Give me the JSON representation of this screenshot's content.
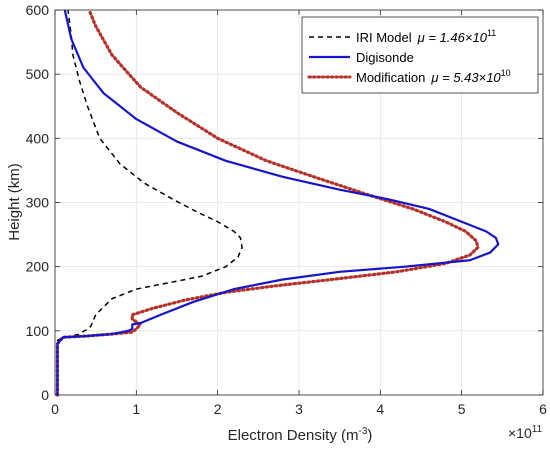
{
  "chart_data": {
    "type": "line",
    "xlabel": "Electron Density (m",
    "xlabel_exponent": "-3",
    "xlabel_suffix": ")",
    "ylabel": "Height (km)",
    "x_multiplier_base": "×10",
    "x_multiplier_exponent": "11",
    "xlim": [
      0,
      6
    ],
    "ylim": [
      0,
      600
    ],
    "xticks": [
      "0",
      "1",
      "2",
      "3",
      "4",
      "5",
      "6"
    ],
    "yticks": [
      "0",
      "100",
      "200",
      "300",
      "400",
      "500",
      "600"
    ],
    "grid": true,
    "legend_position": "top-right",
    "series": [
      {
        "name": "IRI Model",
        "legend_math": "μ = 1.46×10",
        "legend_exponent": "11",
        "color": "#000000",
        "style": "dashed",
        "x": [
          0.03,
          0.03,
          0.07,
          0.15,
          0.3,
          0.36,
          0.4,
          0.44,
          0.45,
          0.5,
          0.7,
          1.0,
          1.4,
          1.8,
          2.1,
          2.25,
          2.3,
          2.28,
          2.2,
          2.0,
          1.75,
          1.45,
          1.1,
          0.8,
          0.55,
          0.4,
          0.3,
          0.22,
          0.2,
          0.18,
          0.16
        ],
        "y": [
          0,
          85,
          88,
          90,
          95,
          100,
          102,
          107,
          110,
          125,
          150,
          165,
          175,
          185,
          200,
          215,
          230,
          245,
          255,
          270,
          285,
          305,
          330,
          360,
          400,
          450,
          490,
          530,
          560,
          580,
          600
        ]
      },
      {
        "name": "Digisonde",
        "legend_math": "",
        "legend_exponent": "",
        "color": "#1515cc",
        "style": "solid",
        "x": [
          0.03,
          0.03,
          0.1,
          0.4,
          0.7,
          0.9,
          0.95,
          0.95,
          1.05,
          1.3,
          1.7,
          2.2,
          2.8,
          3.5,
          4.3,
          5.1,
          5.35,
          5.45,
          5.42,
          5.3,
          5.0,
          4.6,
          4.1,
          3.5,
          2.8,
          2.1,
          1.5,
          1.0,
          0.6,
          0.35,
          0.2,
          0.12
        ],
        "y": [
          0,
          80,
          90,
          92,
          95,
          100,
          103,
          110,
          112,
          125,
          145,
          165,
          180,
          192,
          200,
          210,
          222,
          235,
          245,
          255,
          270,
          290,
          305,
          320,
          340,
          365,
          395,
          430,
          470,
          510,
          555,
          600
        ]
      },
      {
        "name": "Modification",
        "legend_math": "μ = 5.43×10",
        "legend_exponent": "10",
        "color": "#b5312a",
        "style": "dotted",
        "x": [
          0.03,
          0.03,
          0.1,
          0.4,
          0.7,
          0.95,
          1.0,
          1.05,
          0.95,
          0.95,
          1.2,
          1.6,
          2.1,
          2.7,
          3.4,
          4.2,
          4.8,
          5.1,
          5.2,
          5.18,
          5.05,
          4.8,
          4.4,
          3.9,
          3.3,
          2.6,
          2.0,
          1.5,
          1.05,
          0.7,
          0.5,
          0.42
        ],
        "y": [
          0,
          80,
          90,
          92,
          95,
          98,
          103,
          110,
          118,
          125,
          135,
          148,
          160,
          170,
          180,
          192,
          205,
          218,
          230,
          240,
          255,
          270,
          290,
          310,
          335,
          365,
          400,
          440,
          480,
          530,
          575,
          600
        ]
      }
    ]
  }
}
